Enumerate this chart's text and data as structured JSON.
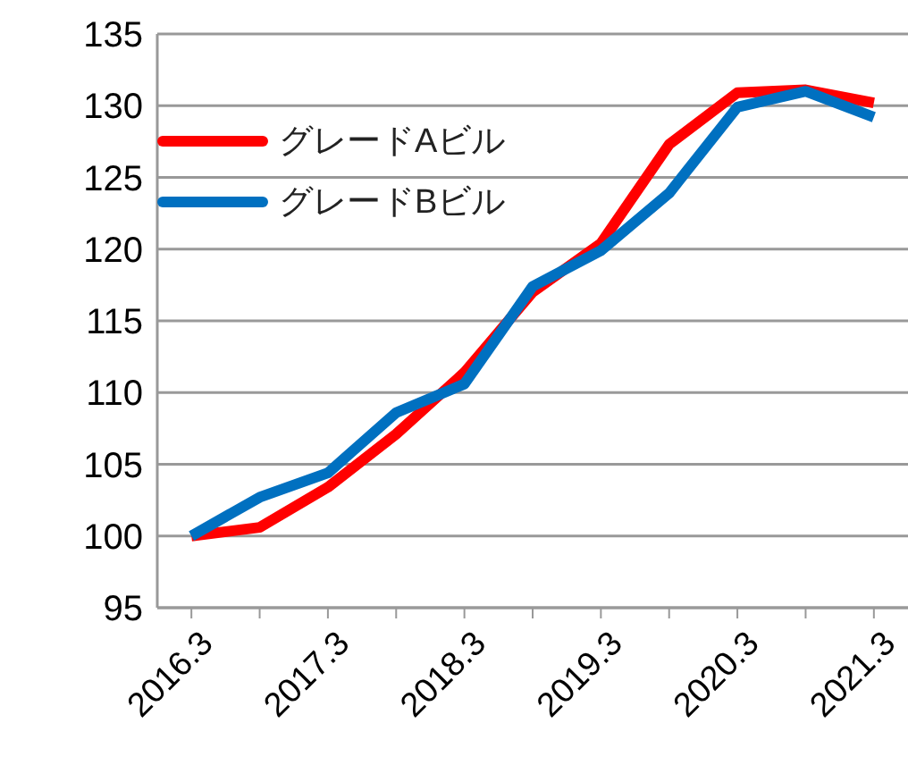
{
  "chart_data": {
    "type": "line",
    "categories": [
      "2016.3",
      null,
      "2017.3",
      null,
      "2018.3",
      null,
      "2019.3",
      null,
      "2020.3",
      null,
      "2021.3"
    ],
    "series": [
      {
        "name": "グレードAビル",
        "color": "#ff0000",
        "values": [
          100,
          100.6,
          103.4,
          107.1,
          111.4,
          117.0,
          120.4,
          127.3,
          130.9,
          131.1,
          130.2
        ]
      },
      {
        "name": "グレードBビル",
        "color": "#0070c0",
        "values": [
          100,
          102.7,
          104.4,
          108.6,
          110.6,
          117.4,
          119.9,
          123.9,
          129.9,
          131.0,
          129.2
        ]
      }
    ],
    "ylim": [
      95,
      135
    ],
    "yticks": [
      95,
      100,
      105,
      110,
      115,
      120,
      125,
      130,
      135
    ],
    "grid": "y",
    "legend": "top left",
    "marker": "none",
    "line_style": "solid"
  }
}
